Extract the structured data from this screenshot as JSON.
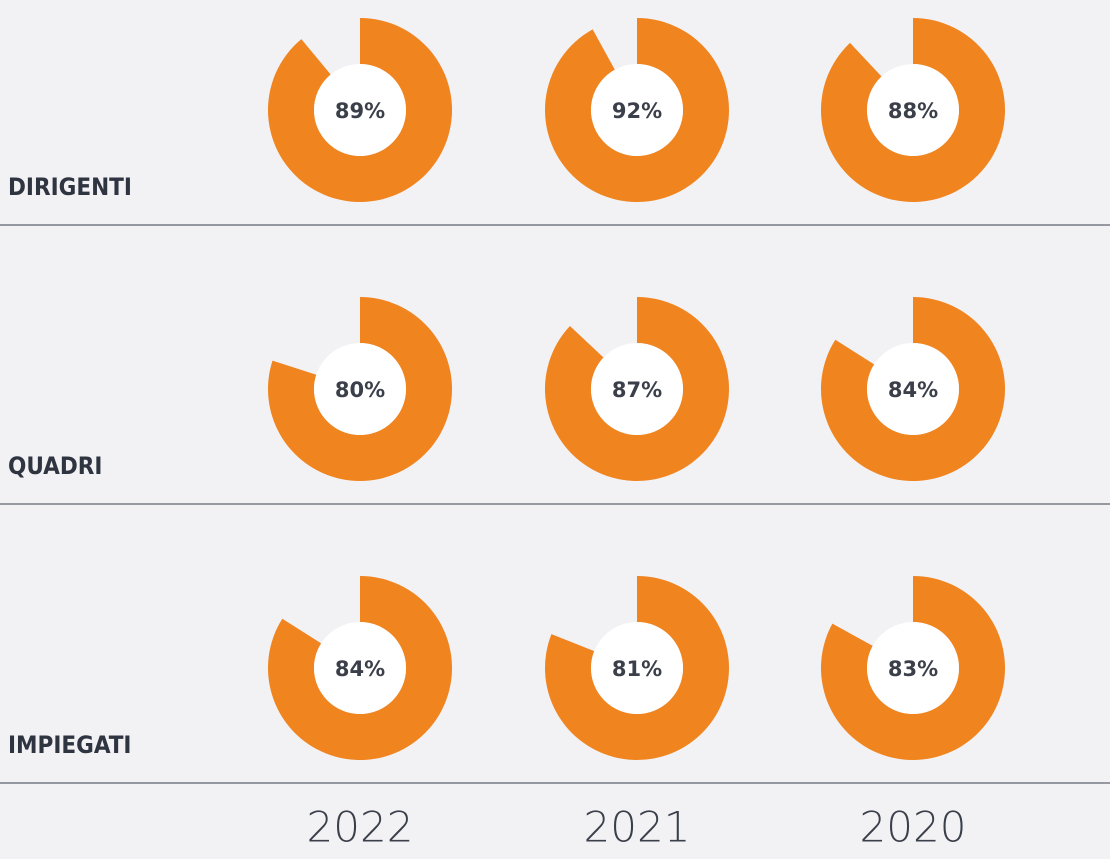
{
  "chart_data": {
    "type": "donut",
    "columns": [
      "2022",
      "2021",
      "2020"
    ],
    "series": [
      {
        "name": "DIRIGENTI",
        "color": "#f0841f",
        "values": [
          89,
          92,
          88
        ],
        "value_labels": [
          "89%",
          "92%",
          "88%"
        ]
      },
      {
        "name": "QUADRI",
        "color": "#f0841f",
        "values": [
          80,
          87,
          84
        ],
        "value_labels": [
          "80%",
          "87%",
          "84%"
        ]
      },
      {
        "name": "IMPIEGATI",
        "color": "#f0841f",
        "values": [
          84,
          81,
          83
        ],
        "value_labels": [
          "84%",
          "81%",
          "83%"
        ]
      }
    ]
  }
}
